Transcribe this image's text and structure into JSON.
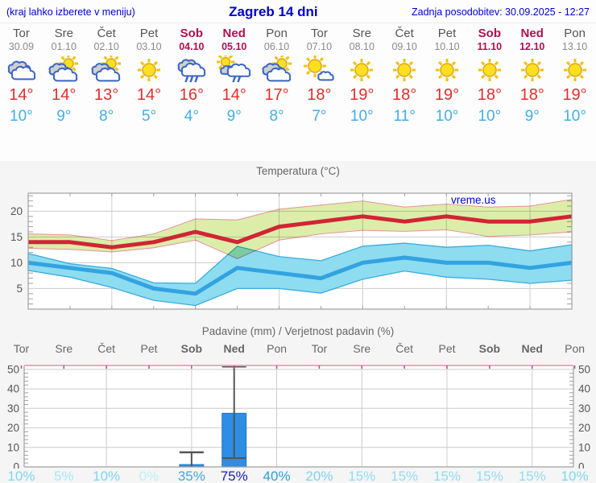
{
  "header": {
    "left_note": "(kraj lahko izberete v meniju)",
    "title": "Zagreb 14 dni",
    "updated": "Zadnja posodobitev: 30.09.2025 - 12:27"
  },
  "colors": {
    "link_blue": "#0000cc",
    "weekend": "#b0104f",
    "weekday": "#555555",
    "high_temp": "#e22d2d",
    "low_temp": "#41aee8",
    "max_line": "#d02535",
    "max_band_fill": "#dcedaa",
    "max_band_edge": "#e8909a",
    "min_line": "#33a3e0",
    "min_band_fill": "#8edcf0",
    "min_band_edge": "#3aabdf",
    "bar_fill": "#2e8de4",
    "bar_edge": "#2277cc",
    "whisker": "#555555",
    "grid": "#cccccc",
    "axis": "#a0a0a0",
    "precip_top_axis": "#f0a8bc",
    "precip_top_tick": "#c4497e",
    "watermark_blue": "#0000dd"
  },
  "days": [
    {
      "name": "Tor",
      "date": "30.09",
      "weekend": false,
      "icon": "cloudy",
      "high": "14°",
      "low": "10°",
      "prob": "10%",
      "prob_color": "#7dd7f0"
    },
    {
      "name": "Sre",
      "date": "01.10",
      "weekend": false,
      "icon": "partly-cloudy",
      "high": "14°",
      "low": "9°",
      "prob": "5%",
      "prob_color": "#a6e8f8"
    },
    {
      "name": "Čet",
      "date": "02.10",
      "weekend": false,
      "icon": "partly-cloudy",
      "high": "13°",
      "low": "8°",
      "prob": "10%",
      "prob_color": "#7dd7f0"
    },
    {
      "name": "Pet",
      "date": "03.10",
      "weekend": false,
      "icon": "sunny",
      "high": "14°",
      "low": "5°",
      "prob": "0%",
      "prob_color": "#bdf0fb"
    },
    {
      "name": "Sob",
      "date": "04.10",
      "weekend": true,
      "icon": "rain",
      "high": "16°",
      "low": "4°",
      "prob": "35%",
      "prob_color": "#47a5d9"
    },
    {
      "name": "Ned",
      "date": "05.10",
      "weekend": true,
      "icon": "sun-rain",
      "high": "14°",
      "low": "9°",
      "prob": "75%",
      "prob_color": "#1b22aa"
    },
    {
      "name": "Pon",
      "date": "06.10",
      "weekend": false,
      "icon": "partly-cloudy",
      "high": "17°",
      "low": "8°",
      "prob": "40%",
      "prob_color": "#2d9fdf"
    },
    {
      "name": "Tor",
      "date": "07.10",
      "weekend": false,
      "icon": "mostly-sunny",
      "high": "18°",
      "low": "7°",
      "prob": "20%",
      "prob_color": "#7ed3ee"
    },
    {
      "name": "Sre",
      "date": "08.10",
      "weekend": false,
      "icon": "sunny",
      "high": "19°",
      "low": "10°",
      "prob": "15%",
      "prob_color": "#92dcf3"
    },
    {
      "name": "Čet",
      "date": "09.10",
      "weekend": false,
      "icon": "sunny",
      "high": "18°",
      "low": "11°",
      "prob": "15%",
      "prob_color": "#92dcf3"
    },
    {
      "name": "Pet",
      "date": "10.10",
      "weekend": false,
      "icon": "sunny",
      "high": "19°",
      "low": "10°",
      "prob": "15%",
      "prob_color": "#92dcf3"
    },
    {
      "name": "Sob",
      "date": "11.10",
      "weekend": true,
      "icon": "sunny",
      "high": "18°",
      "low": "10°",
      "prob": "15%",
      "prob_color": "#92dcf3"
    },
    {
      "name": "Ned",
      "date": "12.10",
      "weekend": true,
      "icon": "sunny",
      "high": "18°",
      "low": "9°",
      "prob": "15%",
      "prob_color": "#92dcf3"
    },
    {
      "name": "Pon",
      "date": "13.10",
      "weekend": false,
      "icon": "sunny",
      "high": "19°",
      "low": "10°",
      "prob": "10%",
      "prob_color": "#7dd7f0"
    }
  ],
  "chart_data": [
    {
      "type": "line",
      "title": "Temperatura (°C)",
      "watermark": "vreme.us",
      "x_labels": [
        "Tor",
        "Sre",
        "Čet",
        "Pet",
        "Sob",
        "Ned",
        "Pon",
        "Tor",
        "Sre",
        "Čet",
        "Pet",
        "Sob",
        "Ned",
        "Pon"
      ],
      "ylim": [
        1,
        23.5
      ],
      "yticks": [
        5,
        10,
        15,
        20
      ],
      "grid_x_indices": [
        2,
        4,
        6,
        8,
        10,
        12
      ],
      "series": [
        {
          "name": "max-temp",
          "kind": "line",
          "values": [
            14,
            14,
            13,
            14,
            16,
            14,
            17,
            18,
            19,
            18,
            19,
            18,
            18,
            19
          ]
        },
        {
          "name": "max-temp-range",
          "kind": "band",
          "upper": [
            15.6,
            15.4,
            14.3,
            15.6,
            18.5,
            18.3,
            20.4,
            21.2,
            22.0,
            20.8,
            21.4,
            20.8,
            21.0,
            22.3
          ],
          "lower": [
            12.8,
            12.6,
            12.1,
            12.9,
            14.4,
            10.8,
            14.4,
            15.6,
            16.3,
            16.1,
            16.4,
            15.1,
            15.4,
            16.0
          ]
        },
        {
          "name": "min-temp",
          "kind": "line",
          "values": [
            10,
            9,
            8,
            5,
            4,
            9,
            8,
            7,
            10,
            11,
            10,
            10,
            9,
            10
          ]
        },
        {
          "name": "min-temp-range",
          "kind": "band",
          "upper": [
            11.8,
            9.8,
            8.9,
            6.1,
            6.0,
            13.2,
            11.2,
            10.4,
            13.2,
            13.8,
            13.0,
            13.4,
            12.3,
            13.5
          ],
          "lower": [
            8.5,
            7.2,
            5.2,
            2.7,
            1.7,
            5.0,
            5.0,
            4.1,
            6.8,
            8.4,
            7.2,
            6.8,
            6.0,
            6.6
          ]
        }
      ]
    },
    {
      "type": "bar",
      "title": "Padavine (mm) / Verjetnost padavin (%)",
      "categories": [
        "Tor",
        "Sre",
        "Čet",
        "Pet",
        "Sob",
        "Ned",
        "Pon",
        "Tor",
        "Sre",
        "Čet",
        "Pet",
        "Sob",
        "Ned",
        "Pon"
      ],
      "values": [
        0,
        0,
        0,
        0,
        1.2,
        27.5,
        0,
        0,
        0,
        0,
        0,
        0,
        0,
        0
      ],
      "whisker_max": [
        null,
        null,
        null,
        null,
        7.5,
        52,
        null,
        null,
        null,
        null,
        null,
        null,
        null,
        null
      ],
      "box_line": [
        null,
        null,
        null,
        null,
        null,
        4.5,
        null,
        null,
        null,
        null,
        null,
        null,
        null,
        null
      ],
      "probabilities": [
        "10%",
        "5%",
        "10%",
        "0%",
        "35%",
        "75%",
        "40%",
        "20%",
        "15%",
        "15%",
        "15%",
        "15%",
        "15%",
        "10%"
      ],
      "ylim": [
        0,
        52
      ],
      "yticks": [
        0,
        10,
        20,
        30,
        40,
        50
      ],
      "grid_x_indices": [
        2,
        4,
        6,
        8,
        10,
        12
      ]
    }
  ]
}
